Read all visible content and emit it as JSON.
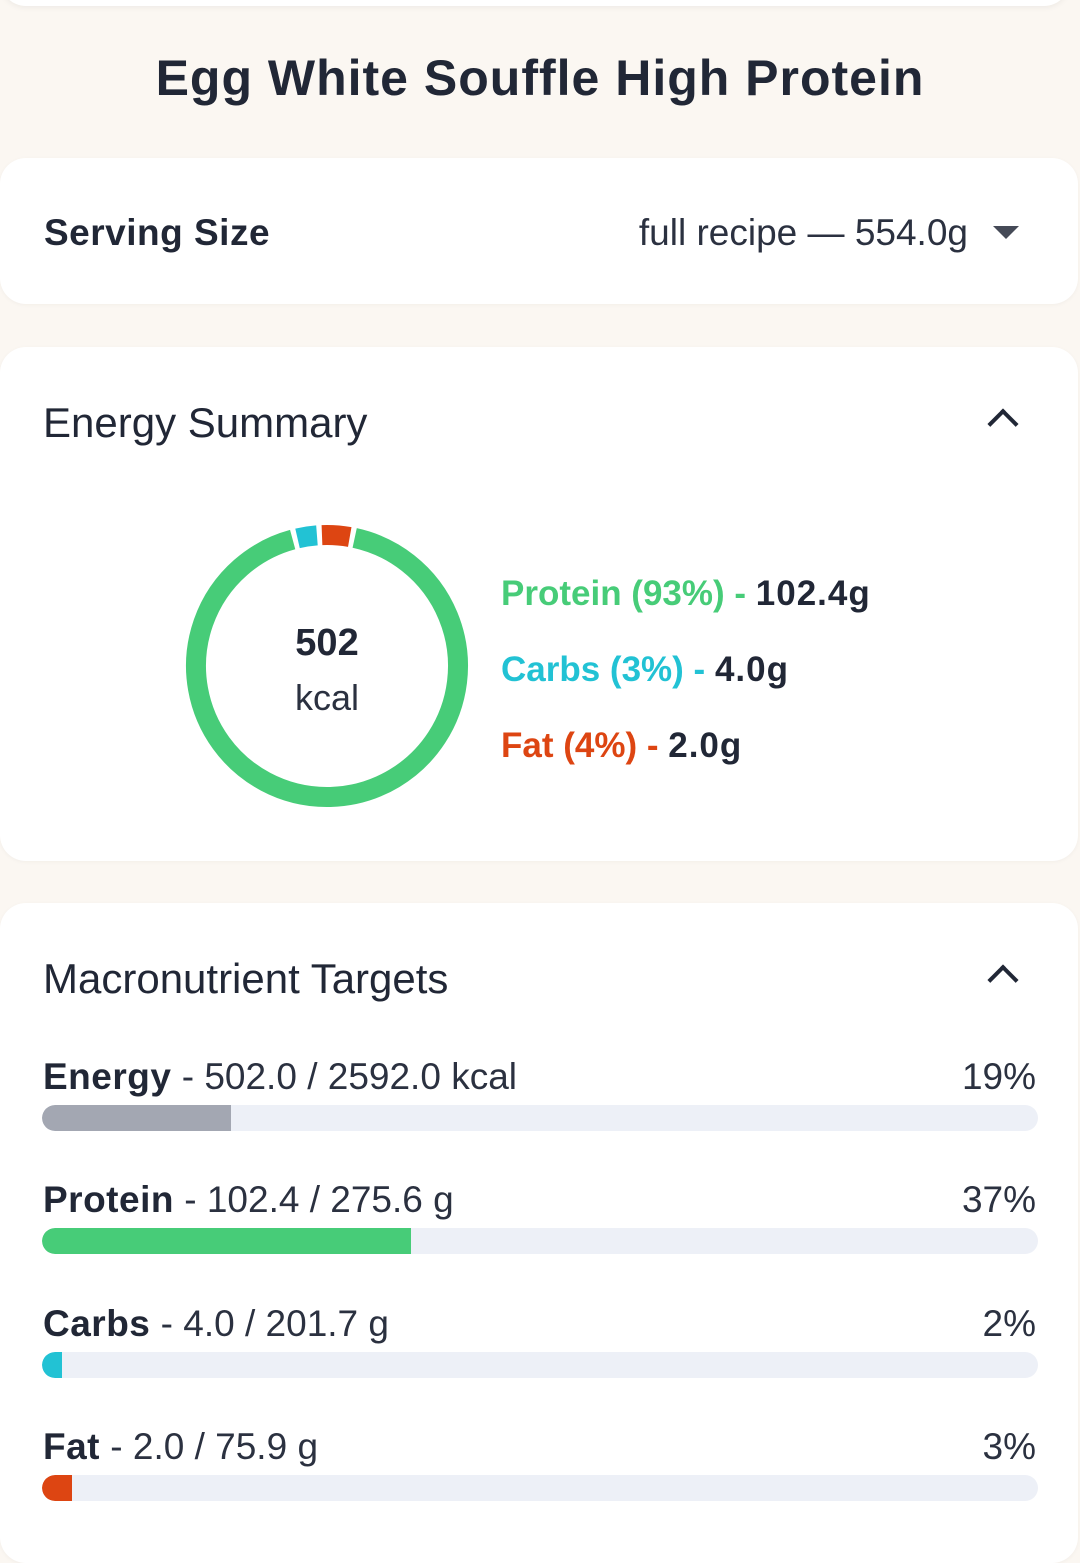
{
  "title": "Egg White Souffle High Protein",
  "serving": {
    "label": "Serving Size",
    "value": "full recipe — 554.0g"
  },
  "energy_summary": {
    "title": "Energy Summary",
    "kcal_value": "502",
    "kcal_unit": "kcal",
    "legend": [
      {
        "label": "Protein (93%)",
        "sep": " - ",
        "amount": "102.4g",
        "color": "#47cc78"
      },
      {
        "label": "Carbs (3%)",
        "sep": " - ",
        "amount": "4.0g",
        "color": "#22c2d4"
      },
      {
        "label": "Fat (4%)",
        "sep": " - ",
        "amount": "2.0g",
        "color": "#dd4512"
      }
    ]
  },
  "macro_targets": {
    "title": "Macronutrient Targets",
    "rows": [
      {
        "name": "Energy",
        "detail": " - 502.0 / 2592.0 kcal",
        "pct": "19%",
        "fraction": 0.19,
        "color": "#a3a7b2"
      },
      {
        "name": "Protein",
        "detail": " - 102.4 / 275.6 g",
        "pct": "37%",
        "fraction": 0.37,
        "color": "#47cc78"
      },
      {
        "name": "Carbs",
        "detail": " - 4.0 / 201.7 g",
        "pct": "2%",
        "fraction": 0.02,
        "color": "#22c2d4"
      },
      {
        "name": "Fat",
        "detail": " - 2.0 / 75.9 g",
        "pct": "3%",
        "fraction": 0.03,
        "color": "#dd4512"
      }
    ]
  },
  "chart_data": {
    "type": "pie",
    "categories": [
      "Protein",
      "Carbs",
      "Fat"
    ],
    "values": [
      93,
      3,
      4
    ],
    "colors": [
      "#47cc78",
      "#22c2d4",
      "#dd4512"
    ],
    "center_label": "502 kcal"
  }
}
